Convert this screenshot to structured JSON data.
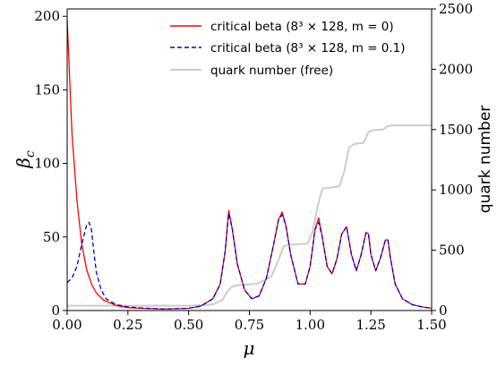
{
  "chart_data": {
    "type": "line",
    "xlabel": "μ",
    "ylabel": "β",
    "ylabel_sub": "c",
    "y2label": "quark number",
    "xlim": [
      0.0,
      1.5
    ],
    "ylim": [
      0,
      205
    ],
    "y2lim": [
      0,
      2500
    ],
    "xticks": [
      "0.00",
      "0.25",
      "0.50",
      "0.75",
      "1.00",
      "1.25",
      "1.50"
    ],
    "yticks": [
      "0",
      "50",
      "100",
      "150",
      "200"
    ],
    "y2ticks": [
      "0",
      "500",
      "1000",
      "1500",
      "2000",
      "2500"
    ],
    "legend_position": "top-right",
    "series": [
      {
        "name": "critical beta (8³ × 128, m = 0)",
        "color": "#ff0000",
        "style": "solid",
        "axis": "left",
        "x": [
          0.0,
          0.02,
          0.04,
          0.06,
          0.08,
          0.1,
          0.12,
          0.15,
          0.2,
          0.25,
          0.3,
          0.4,
          0.5,
          0.55,
          0.6,
          0.63,
          0.65,
          0.665,
          0.68,
          0.7,
          0.73,
          0.76,
          0.79,
          0.82,
          0.85,
          0.87,
          0.885,
          0.9,
          0.92,
          0.95,
          0.98,
          1.0,
          1.02,
          1.035,
          1.05,
          1.07,
          1.09,
          1.11,
          1.13,
          1.15,
          1.17,
          1.19,
          1.21,
          1.23,
          1.24,
          1.25,
          1.27,
          1.29,
          1.31,
          1.32,
          1.33,
          1.35,
          1.38,
          1.42,
          1.46,
          1.5
        ],
        "y": [
          198,
          120,
          75,
          45,
          28,
          18,
          12,
          7,
          3.5,
          2,
          1.5,
          1,
          1.5,
          3,
          8,
          18,
          40,
          68,
          55,
          32,
          14,
          8,
          10,
          22,
          45,
          62,
          67,
          58,
          38,
          18,
          18,
          30,
          55,
          63,
          50,
          30,
          25,
          35,
          52,
          57,
          38,
          27,
          38,
          53,
          52,
          38,
          27,
          36,
          48,
          48,
          36,
          18,
          8,
          4,
          2.5,
          1.5
        ]
      },
      {
        "name": "critical beta (8³ × 128, m = 0.1)",
        "color": "#0000cc",
        "style": "dashed",
        "axis": "left",
        "x": [
          0.0,
          0.02,
          0.04,
          0.06,
          0.08,
          0.09,
          0.1,
          0.11,
          0.12,
          0.14,
          0.16,
          0.2,
          0.25,
          0.3,
          0.4,
          0.5,
          0.55,
          0.6,
          0.63,
          0.65,
          0.665,
          0.68,
          0.7,
          0.73,
          0.76,
          0.79,
          0.82,
          0.85,
          0.87,
          0.885,
          0.9,
          0.92,
          0.95,
          0.98,
          1.0,
          1.02,
          1.035,
          1.05,
          1.07,
          1.09,
          1.11,
          1.13,
          1.15,
          1.17,
          1.19,
          1.21,
          1.23,
          1.24,
          1.25,
          1.27,
          1.29,
          1.31,
          1.32,
          1.33,
          1.35,
          1.38,
          1.42,
          1.46,
          1.5
        ],
        "y": [
          19,
          22,
          30,
          45,
          58,
          60,
          55,
          40,
          26,
          14,
          8,
          4,
          2.5,
          1.8,
          1,
          1.5,
          3,
          8,
          18,
          40,
          66,
          55,
          32,
          14,
          8,
          10,
          22,
          45,
          62,
          65,
          58,
          38,
          18,
          18,
          30,
          55,
          60,
          50,
          30,
          25,
          35,
          52,
          57,
          38,
          27,
          38,
          53,
          52,
          38,
          27,
          36,
          48,
          48,
          36,
          18,
          8,
          4,
          2.5,
          1.5
        ]
      },
      {
        "name": "quark number (free)",
        "color": "#cccccc",
        "style": "solid",
        "axis": "right",
        "x": [
          0.0,
          0.1,
          0.2,
          0.3,
          0.4,
          0.5,
          0.6,
          0.64,
          0.66,
          0.68,
          0.7,
          0.78,
          0.84,
          0.87,
          0.89,
          0.91,
          0.99,
          1.01,
          1.03,
          1.05,
          1.12,
          1.14,
          1.16,
          1.18,
          1.22,
          1.24,
          1.26,
          1.3,
          1.32,
          1.34,
          1.5
        ],
        "y": [
          40,
          40,
          40,
          40,
          40,
          40,
          50,
          90,
          160,
          200,
          210,
          220,
          280,
          420,
          530,
          545,
          555,
          650,
          860,
          1010,
          1030,
          1150,
          1350,
          1380,
          1390,
          1480,
          1495,
          1500,
          1530,
          1535,
          1535
        ]
      }
    ]
  }
}
